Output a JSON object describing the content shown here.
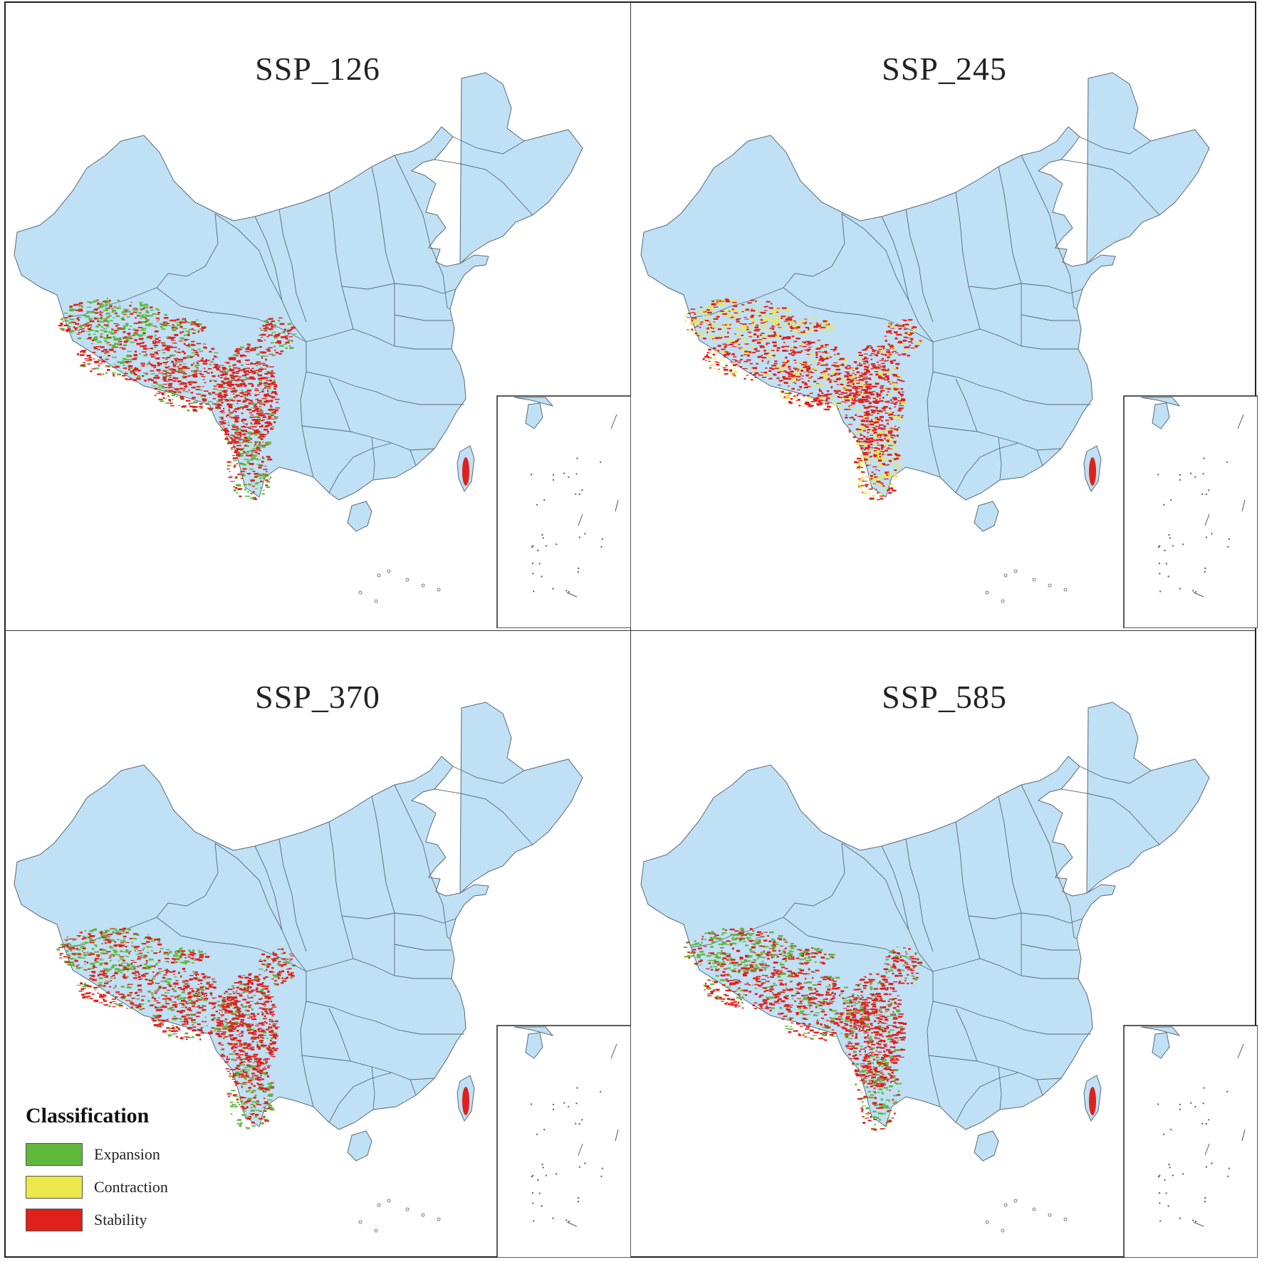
{
  "panels": [
    {
      "title": "SSP_126",
      "dominant_change": "expansion"
    },
    {
      "title": "SSP_245",
      "dominant_change": "contraction"
    },
    {
      "title": "SSP_370",
      "dominant_change": "expansion"
    },
    {
      "title": "SSP_585",
      "dominant_change": "expansion"
    }
  ],
  "legend": {
    "title": "Classification",
    "items": [
      {
        "label": "Expansion",
        "color": "#5fb83a"
      },
      {
        "label": "Contraction",
        "color": "#ece84a"
      },
      {
        "label": "Stability",
        "color": "#e0201a"
      }
    ]
  },
  "colors": {
    "land": "#bfe0f5",
    "border": "#5b6a77",
    "expansion": "#5fb83a",
    "contraction": "#ece84a",
    "stability": "#e0201a"
  }
}
